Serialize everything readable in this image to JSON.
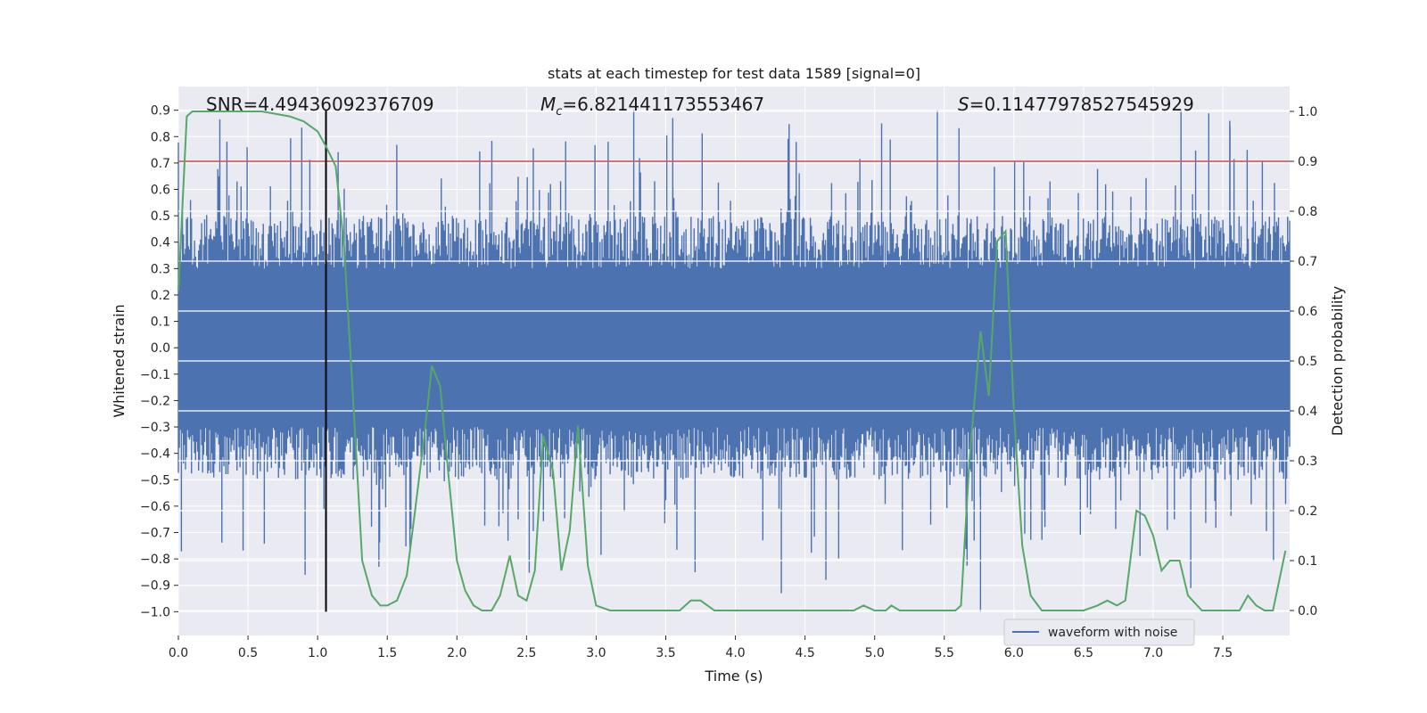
{
  "chart_data": {
    "type": "line",
    "title": "stats at each timestep for test data 1589 [signal=0]",
    "xlabel": "Time (s)",
    "ylabel_left": "Whitened strain",
    "ylabel_right": "Detection probability",
    "xlim": [
      0.0,
      7.98
    ],
    "ylim_left": [
      -1.09,
      0.99
    ],
    "ylim_right": [
      -0.05,
      1.05
    ],
    "x_ticks": [
      "0.0",
      "0.5",
      "1.0",
      "1.5",
      "2.0",
      "2.5",
      "3.0",
      "3.5",
      "4.0",
      "4.5",
      "5.0",
      "5.5",
      "6.0",
      "6.5",
      "7.0",
      "7.5"
    ],
    "y_left_ticks": [
      "0.9",
      "0.8",
      "0.7",
      "0.6",
      "0.5",
      "0.4",
      "0.3",
      "0.2",
      "0.1",
      "0.0",
      "−0.1",
      "−0.2",
      "−0.3",
      "−0.4",
      "−0.5",
      "−0.6",
      "−0.7",
      "−0.8",
      "−0.9",
      "−1.0"
    ],
    "y_right_ticks": [
      "1.0",
      "0.9",
      "0.8",
      "0.7",
      "0.6",
      "0.5",
      "0.4",
      "0.3",
      "0.2",
      "0.1",
      "0.0"
    ],
    "grid": true,
    "legend_position": "lower-right",
    "annotations": {
      "snr": "SNR=4.49436092376709",
      "mc_symbol": "M",
      "mc_sub": "c",
      "mc_value": "=6.821441173553467",
      "s_symbol": "S",
      "s_value": "=0.11477978527545929"
    },
    "threshold": {
      "axis": "right",
      "y": 0.9
    },
    "marker_line": {
      "x": 1.06,
      "y_left": [
        -1.0,
        0.9
      ]
    },
    "series": [
      {
        "name": "waveform with noise",
        "axis": "left",
        "kind": "noise",
        "band_low": -0.3,
        "band_high": 0.3,
        "typical_extreme_high": 0.5,
        "typical_extreme_low": -0.5,
        "max": 0.9,
        "min": -1.0
      },
      {
        "axis": "right",
        "kind": "line",
        "x": [
          0.0,
          0.06,
          0.1,
          0.2,
          0.4,
          0.6,
          0.8,
          0.9,
          1.0,
          1.06,
          1.13,
          1.19,
          1.26,
          1.32,
          1.39,
          1.45,
          1.5,
          1.57,
          1.64,
          1.7,
          1.77,
          1.82,
          1.88,
          1.94,
          2.0,
          2.06,
          2.12,
          2.18,
          2.25,
          2.31,
          2.38,
          2.44,
          2.5,
          2.56,
          2.62,
          2.69,
          2.75,
          2.81,
          2.87,
          2.94,
          3.0,
          3.1,
          3.3,
          3.5,
          3.6,
          3.68,
          3.75,
          3.85,
          3.95,
          4.1,
          4.3,
          4.4,
          4.6,
          4.7,
          4.85,
          4.92,
          5.0,
          5.08,
          5.12,
          5.18,
          5.25,
          5.35,
          5.5,
          5.58,
          5.62,
          5.68,
          5.76,
          5.82,
          5.88,
          5.94,
          6.0,
          6.06,
          6.12,
          6.2,
          6.3,
          6.5,
          6.6,
          6.67,
          6.74,
          6.8,
          6.88,
          6.94,
          7.0,
          7.06,
          7.12,
          7.19,
          7.25,
          7.35,
          7.5,
          7.62,
          7.68,
          7.74,
          7.8,
          7.86,
          7.95
        ],
        "y": [
          0.64,
          0.99,
          1.0,
          1.0,
          1.0,
          1.0,
          0.99,
          0.98,
          0.96,
          0.93,
          0.89,
          0.73,
          0.4,
          0.1,
          0.03,
          0.01,
          0.01,
          0.02,
          0.07,
          0.2,
          0.36,
          0.49,
          0.45,
          0.27,
          0.1,
          0.04,
          0.01,
          0.0,
          0.0,
          0.03,
          0.11,
          0.03,
          0.02,
          0.08,
          0.35,
          0.28,
          0.08,
          0.16,
          0.37,
          0.09,
          0.01,
          0.0,
          0.0,
          0.0,
          0.0,
          0.02,
          0.02,
          0.0,
          0.0,
          0.0,
          0.0,
          0.0,
          0.0,
          0.0,
          0.0,
          0.01,
          0.0,
          0.0,
          0.01,
          0.0,
          0.0,
          0.0,
          0.0,
          0.0,
          0.01,
          0.3,
          0.56,
          0.43,
          0.74,
          0.76,
          0.4,
          0.13,
          0.03,
          0.0,
          0.0,
          0.0,
          0.01,
          0.02,
          0.01,
          0.02,
          0.2,
          0.19,
          0.15,
          0.08,
          0.1,
          0.1,
          0.03,
          0.0,
          0.0,
          0.0,
          0.03,
          0.01,
          0.0,
          0.0,
          0.12
        ]
      }
    ]
  },
  "colors": {
    "plot_bg": "#eaeaf2",
    "grid": "#ffffff",
    "waveform": "#4c72b0",
    "probability": "#55a868",
    "threshold": "#c44e52",
    "marker": "#000000"
  }
}
